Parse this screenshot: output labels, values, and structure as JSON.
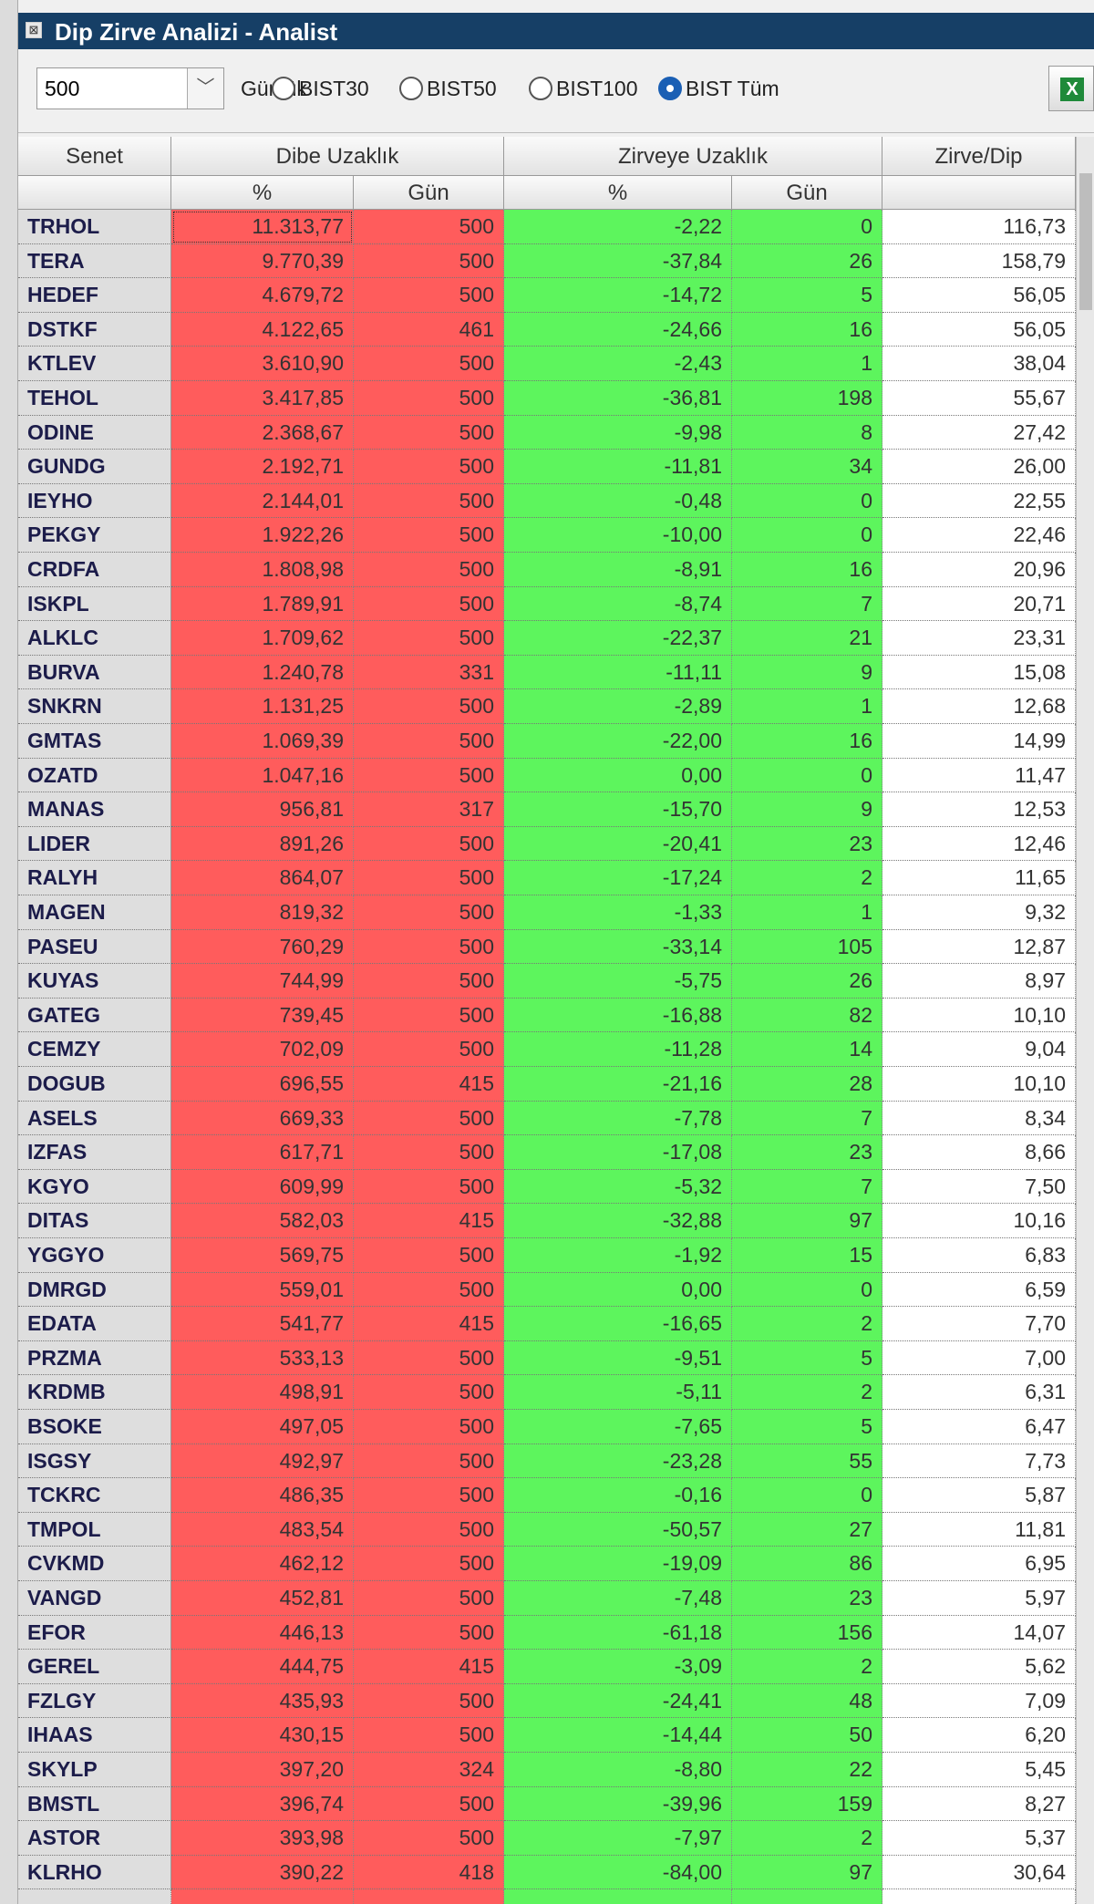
{
  "window": {
    "title": "Dip Zirve Analizi - Analist"
  },
  "toolbar": {
    "period": "500",
    "period_unit": "Günlük",
    "options": [
      "BIST30",
      "BIST50",
      "BIST100",
      "BIST Tüm"
    ],
    "selected_index": 3
  },
  "table": {
    "headers": [
      "Senet",
      "Dibe Uzaklık",
      "Zirveye Uzaklık",
      "Zirve/Dip"
    ],
    "subheaders": [
      "%",
      "Gün",
      "%",
      "Gün"
    ],
    "rows": [
      [
        "TRHOL",
        "11.313,77",
        "500",
        "-2,22",
        "0",
        "116,73"
      ],
      [
        "TERA",
        "9.770,39",
        "500",
        "-37,84",
        "26",
        "158,79"
      ],
      [
        "HEDEF",
        "4.679,72",
        "500",
        "-14,72",
        "5",
        "56,05"
      ],
      [
        "DSTKF",
        "4.122,65",
        "461",
        "-24,66",
        "16",
        "56,05"
      ],
      [
        "KTLEV",
        "3.610,90",
        "500",
        "-2,43",
        "1",
        "38,04"
      ],
      [
        "TEHOL",
        "3.417,85",
        "500",
        "-36,81",
        "198",
        "55,67"
      ],
      [
        "ODINE",
        "2.368,67",
        "500",
        "-9,98",
        "8",
        "27,42"
      ],
      [
        "GUNDG",
        "2.192,71",
        "500",
        "-11,81",
        "34",
        "26,00"
      ],
      [
        "IEYHO",
        "2.144,01",
        "500",
        "-0,48",
        "0",
        "22,55"
      ],
      [
        "PEKGY",
        "1.922,26",
        "500",
        "-10,00",
        "0",
        "22,46"
      ],
      [
        "CRDFA",
        "1.808,98",
        "500",
        "-8,91",
        "16",
        "20,96"
      ],
      [
        "ISKPL",
        "1.789,91",
        "500",
        "-8,74",
        "7",
        "20,71"
      ],
      [
        "ALKLC",
        "1.709,62",
        "500",
        "-22,37",
        "21",
        "23,31"
      ],
      [
        "BURVA",
        "1.240,78",
        "331",
        "-11,11",
        "9",
        "15,08"
      ],
      [
        "SNKRN",
        "1.131,25",
        "500",
        "-2,89",
        "1",
        "12,68"
      ],
      [
        "GMTAS",
        "1.069,39",
        "500",
        "-22,00",
        "16",
        "14,99"
      ],
      [
        "OZATD",
        "1.047,16",
        "500",
        "0,00",
        "0",
        "11,47"
      ],
      [
        "MANAS",
        "956,81",
        "317",
        "-15,70",
        "9",
        "12,53"
      ],
      [
        "LIDER",
        "891,26",
        "500",
        "-20,41",
        "23",
        "12,46"
      ],
      [
        "RALYH",
        "864,07",
        "500",
        "-17,24",
        "2",
        "11,65"
      ],
      [
        "MAGEN",
        "819,32",
        "500",
        "-1,33",
        "1",
        "9,32"
      ],
      [
        "PASEU",
        "760,29",
        "500",
        "-33,14",
        "105",
        "12,87"
      ],
      [
        "KUYAS",
        "744,99",
        "500",
        "-5,75",
        "26",
        "8,97"
      ],
      [
        "GATEG",
        "739,45",
        "500",
        "-16,88",
        "82",
        "10,10"
      ],
      [
        "CEMZY",
        "702,09",
        "500",
        "-11,28",
        "14",
        "9,04"
      ],
      [
        "DOGUB",
        "696,55",
        "415",
        "-21,16",
        "28",
        "10,10"
      ],
      [
        "ASELS",
        "669,33",
        "500",
        "-7,78",
        "7",
        "8,34"
      ],
      [
        "IZFAS",
        "617,71",
        "500",
        "-17,08",
        "23",
        "8,66"
      ],
      [
        "KGYO",
        "609,99",
        "500",
        "-5,32",
        "7",
        "7,50"
      ],
      [
        "DITAS",
        "582,03",
        "415",
        "-32,88",
        "97",
        "10,16"
      ],
      [
        "YGGYO",
        "569,75",
        "500",
        "-1,92",
        "15",
        "6,83"
      ],
      [
        "DMRGD",
        "559,01",
        "500",
        "0,00",
        "0",
        "6,59"
      ],
      [
        "EDATA",
        "541,77",
        "415",
        "-16,65",
        "2",
        "7,70"
      ],
      [
        "PRZMA",
        "533,13",
        "500",
        "-9,51",
        "5",
        "7,00"
      ],
      [
        "KRDMB",
        "498,91",
        "500",
        "-5,11",
        "2",
        "6,31"
      ],
      [
        "BSOKE",
        "497,05",
        "500",
        "-7,65",
        "5",
        "6,47"
      ],
      [
        "ISGSY",
        "492,97",
        "500",
        "-23,28",
        "55",
        "7,73"
      ],
      [
        "TCKRC",
        "486,35",
        "500",
        "-0,16",
        "0",
        "5,87"
      ],
      [
        "TMPOL",
        "483,54",
        "500",
        "-50,57",
        "27",
        "11,81"
      ],
      [
        "CVKMD",
        "462,12",
        "500",
        "-19,09",
        "86",
        "6,95"
      ],
      [
        "VANGD",
        "452,81",
        "500",
        "-7,48",
        "23",
        "5,97"
      ],
      [
        "EFOR",
        "446,13",
        "500",
        "-61,18",
        "156",
        "14,07"
      ],
      [
        "GEREL",
        "444,75",
        "415",
        "-3,09",
        "2",
        "5,62"
      ],
      [
        "FZLGY",
        "435,93",
        "500",
        "-24,41",
        "48",
        "7,09"
      ],
      [
        "IHAAS",
        "430,15",
        "500",
        "-14,44",
        "50",
        "6,20"
      ],
      [
        "SKYLP",
        "397,20",
        "324",
        "-8,80",
        "22",
        "5,45"
      ],
      [
        "BMSTL",
        "396,74",
        "500",
        "-39,96",
        "159",
        "8,27"
      ],
      [
        "ASTOR",
        "393,98",
        "500",
        "-7,97",
        "2",
        "5,37"
      ],
      [
        "KLRHO",
        "390,22",
        "418",
        "-84,00",
        "97",
        "30,64"
      ]
    ]
  }
}
